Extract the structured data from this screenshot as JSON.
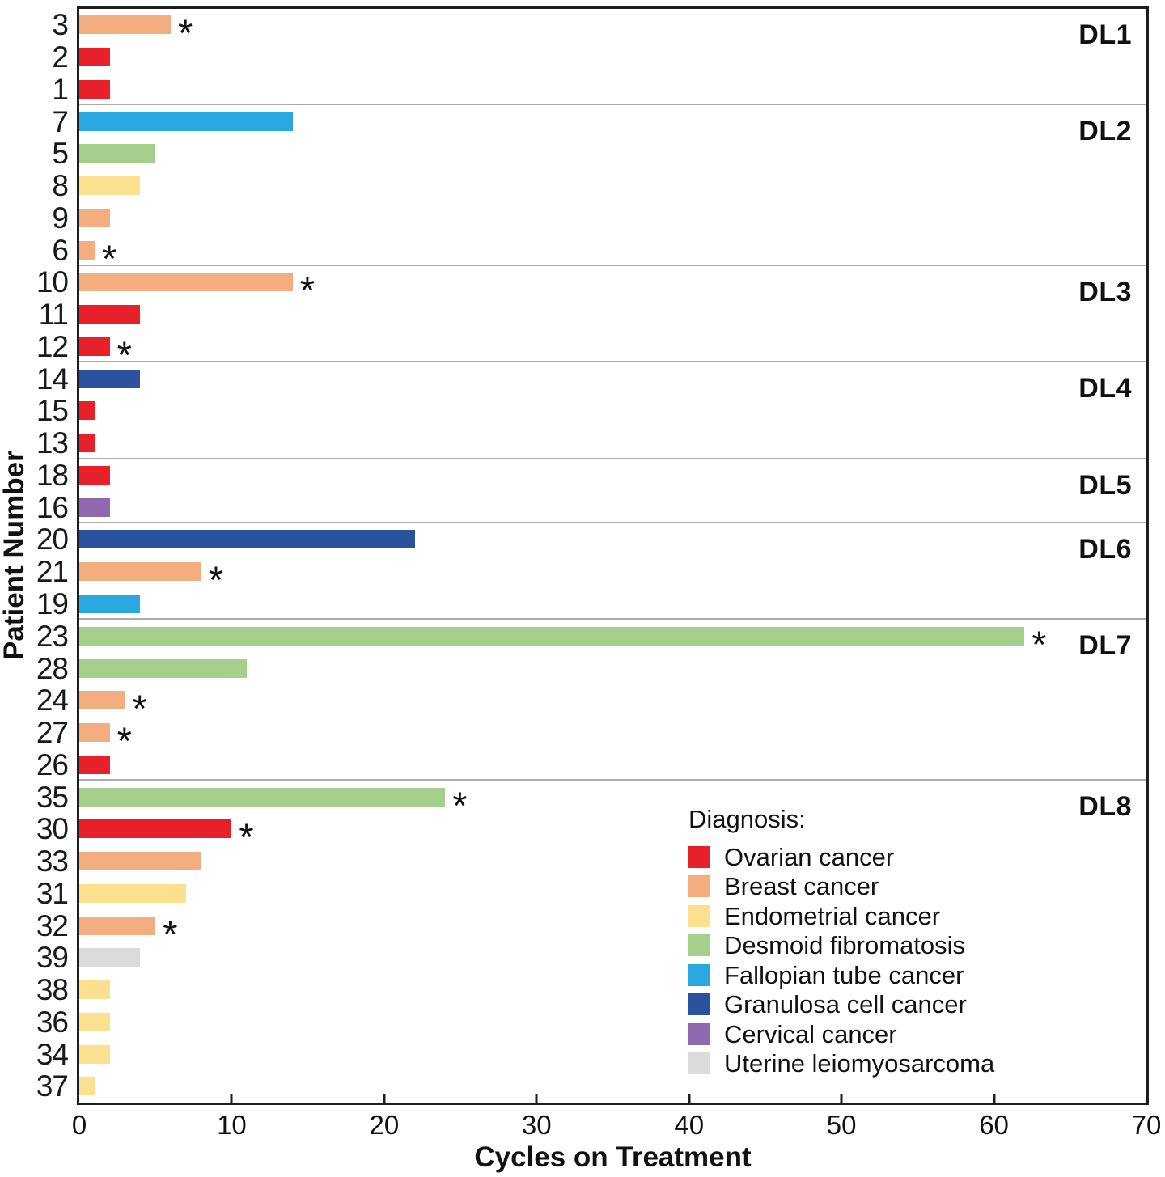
{
  "colors": {
    "frame": "#1e1e1e",
    "group_separator": "#ababab",
    "background": "#ffffff"
  },
  "chart_data": {
    "type": "bar",
    "orientation": "horizontal",
    "xlabel": "Cycles on Treatment",
    "ylabel": "Patient Number",
    "xlim": [
      0,
      70
    ],
    "x_ticks": [
      0,
      10,
      20,
      30,
      40,
      50,
      60,
      70
    ],
    "grid": false,
    "asterisk_marker": "*",
    "legend": {
      "title": "Diagnosis:",
      "position": "inside lower right",
      "entries": [
        {
          "label": "Ovarian cancer",
          "color": "#e8202a"
        },
        {
          "label": "Breast cancer",
          "color": "#f3ad7e"
        },
        {
          "label": "Endometrial cancer",
          "color": "#fae08f"
        },
        {
          "label": "Desmoid fibromatosis",
          "color": "#a7cf8c"
        },
        {
          "label": "Fallopian tube cancer",
          "color": "#29a9e0"
        },
        {
          "label": "Granulosa cell cancer",
          "color": "#2b529e"
        },
        {
          "label": "Cervical cancer",
          "color": "#9169ae"
        },
        {
          "label": "Uterine leiomyosarcoma",
          "color": "#dbdbdb"
        }
      ]
    },
    "groups": [
      {
        "dose_level": "DL1",
        "bars": [
          {
            "patient": "3",
            "cycles": 6,
            "diagnosis": "Breast cancer",
            "asterisk": true
          },
          {
            "patient": "2",
            "cycles": 2,
            "diagnosis": "Ovarian cancer",
            "asterisk": false
          },
          {
            "patient": "1",
            "cycles": 2,
            "diagnosis": "Ovarian cancer",
            "asterisk": false
          }
        ]
      },
      {
        "dose_level": "DL2",
        "bars": [
          {
            "patient": "7",
            "cycles": 14,
            "diagnosis": "Fallopian tube cancer",
            "asterisk": false
          },
          {
            "patient": "5",
            "cycles": 5,
            "diagnosis": "Desmoid fibromatosis",
            "asterisk": false
          },
          {
            "patient": "8",
            "cycles": 4,
            "diagnosis": "Endometrial cancer",
            "asterisk": false
          },
          {
            "patient": "9",
            "cycles": 2,
            "diagnosis": "Breast cancer",
            "asterisk": false
          },
          {
            "patient": "6",
            "cycles": 1,
            "diagnosis": "Breast cancer",
            "asterisk": true
          }
        ]
      },
      {
        "dose_level": "DL3",
        "bars": [
          {
            "patient": "10",
            "cycles": 14,
            "diagnosis": "Breast cancer",
            "asterisk": true
          },
          {
            "patient": "11",
            "cycles": 4,
            "diagnosis": "Ovarian cancer",
            "asterisk": false
          },
          {
            "patient": "12",
            "cycles": 2,
            "diagnosis": "Ovarian cancer",
            "asterisk": true
          }
        ]
      },
      {
        "dose_level": "DL4",
        "bars": [
          {
            "patient": "14",
            "cycles": 4,
            "diagnosis": "Granulosa cell cancer",
            "asterisk": false
          },
          {
            "patient": "15",
            "cycles": 1,
            "diagnosis": "Ovarian cancer",
            "asterisk": false
          },
          {
            "patient": "13",
            "cycles": 1,
            "diagnosis": "Ovarian cancer",
            "asterisk": false
          }
        ]
      },
      {
        "dose_level": "DL5",
        "bars": [
          {
            "patient": "18",
            "cycles": 2,
            "diagnosis": "Ovarian cancer",
            "asterisk": false
          },
          {
            "patient": "16",
            "cycles": 2,
            "diagnosis": "Cervical cancer",
            "asterisk": false
          }
        ]
      },
      {
        "dose_level": "DL6",
        "bars": [
          {
            "patient": "20",
            "cycles": 22,
            "diagnosis": "Granulosa cell cancer",
            "asterisk": false
          },
          {
            "patient": "21",
            "cycles": 8,
            "diagnosis": "Breast cancer",
            "asterisk": true
          },
          {
            "patient": "19",
            "cycles": 4,
            "diagnosis": "Fallopian tube cancer",
            "asterisk": false
          }
        ]
      },
      {
        "dose_level": "DL7",
        "bars": [
          {
            "patient": "23",
            "cycles": 62,
            "diagnosis": "Desmoid fibromatosis",
            "asterisk": true
          },
          {
            "patient": "28",
            "cycles": 11,
            "diagnosis": "Desmoid fibromatosis",
            "asterisk": false
          },
          {
            "patient": "24",
            "cycles": 3,
            "diagnosis": "Breast cancer",
            "asterisk": true
          },
          {
            "patient": "27",
            "cycles": 2,
            "diagnosis": "Breast cancer",
            "asterisk": true
          },
          {
            "patient": "26",
            "cycles": 2,
            "diagnosis": "Ovarian cancer",
            "asterisk": false
          }
        ]
      },
      {
        "dose_level": "DL8",
        "bars": [
          {
            "patient": "35",
            "cycles": 24,
            "diagnosis": "Desmoid fibromatosis",
            "asterisk": true
          },
          {
            "patient": "30",
            "cycles": 10,
            "diagnosis": "Ovarian cancer",
            "asterisk": true
          },
          {
            "patient": "33",
            "cycles": 8,
            "diagnosis": "Breast cancer",
            "asterisk": false
          },
          {
            "patient": "31",
            "cycles": 7,
            "diagnosis": "Endometrial cancer",
            "asterisk": false
          },
          {
            "patient": "32",
            "cycles": 5,
            "diagnosis": "Breast cancer",
            "asterisk": true
          },
          {
            "patient": "39",
            "cycles": 4,
            "diagnosis": "Uterine leiomyosarcoma",
            "asterisk": false
          },
          {
            "patient": "38",
            "cycles": 2,
            "diagnosis": "Endometrial cancer",
            "asterisk": false
          },
          {
            "patient": "36",
            "cycles": 2,
            "diagnosis": "Endometrial cancer",
            "asterisk": false
          },
          {
            "patient": "34",
            "cycles": 2,
            "diagnosis": "Endometrial cancer",
            "asterisk": false
          },
          {
            "patient": "37",
            "cycles": 1,
            "diagnosis": "Endometrial cancer",
            "asterisk": false
          }
        ]
      }
    ]
  }
}
